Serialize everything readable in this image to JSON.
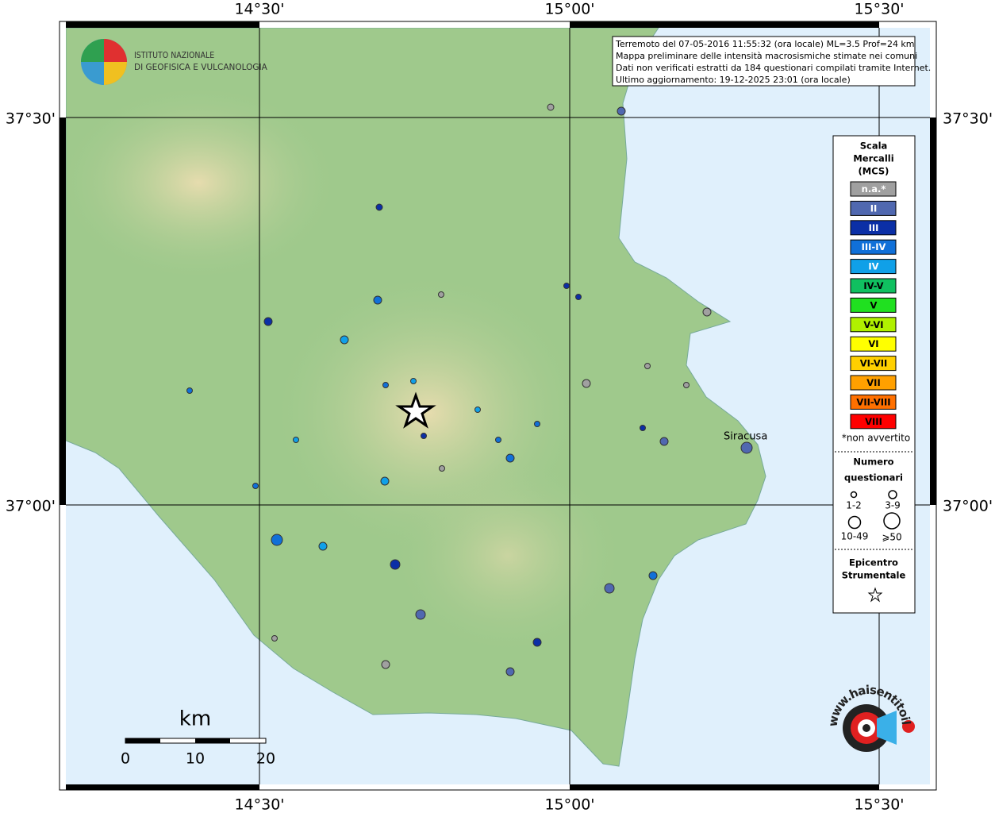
{
  "header": {
    "institute": [
      "ISTITUTO NAZIONALE",
      "DI GEOFISICA E VULCANOLOGIA"
    ]
  },
  "info": [
    "Terremoto del 07-05-2016 11:55:32 (ora locale) ML=3.5 Prof=24 km",
    "Mappa preliminare delle intensità macrosismiche stimate nei comuni",
    "Dati non verificati estratti da 184 questionari compilati tramite Internet.",
    "Ultimo aggiornamento: 19-12-2025 23:01 (ora locale)"
  ],
  "axes": {
    "top": [
      "14°30'",
      "15°00'",
      "15°30'"
    ],
    "bottom": [
      "14°30'",
      "15°00'",
      "15°30'"
    ],
    "left": [
      "37°30'",
      "37°00'"
    ],
    "right": [
      "37°30'",
      "37°00'"
    ]
  },
  "legend": {
    "title": [
      "Scala",
      "Mercalli",
      "(MCS)"
    ],
    "classes": [
      {
        "label": "n.a.*",
        "color": "#a0a0a0"
      },
      {
        "label": "II",
        "color": "#5068b0"
      },
      {
        "label": "III",
        "color": "#0b2fa6"
      },
      {
        "label": "III-IV",
        "color": "#1070d8"
      },
      {
        "label": "IV",
        "color": "#10a0e8"
      },
      {
        "label": "IV-V",
        "color": "#10c060"
      },
      {
        "label": "V",
        "color": "#20e020"
      },
      {
        "label": "V-VI",
        "color": "#b0f000"
      },
      {
        "label": "VI",
        "color": "#ffff00"
      },
      {
        "label": "VI-VII",
        "color": "#ffd000"
      },
      {
        "label": "VII",
        "color": "#ffa000"
      },
      {
        "label": "VII-VIII",
        "color": "#ff7000"
      },
      {
        "label": "VIII",
        "color": "#ff0000"
      }
    ],
    "note": "*non avvertito",
    "count_title": [
      "Numero",
      "questionari"
    ],
    "sizes": [
      "1-2",
      "3-9",
      "10-49",
      "⩾50"
    ],
    "epicenter_title": [
      "Epicentro",
      "Strumentale"
    ]
  },
  "places": [
    "Siracusa"
  ],
  "scale_bar": {
    "unit": "km",
    "ticks": [
      "0",
      "10",
      "20"
    ]
  },
  "logo": {
    "text": "www.haisentitoilterremoto.it"
  }
}
